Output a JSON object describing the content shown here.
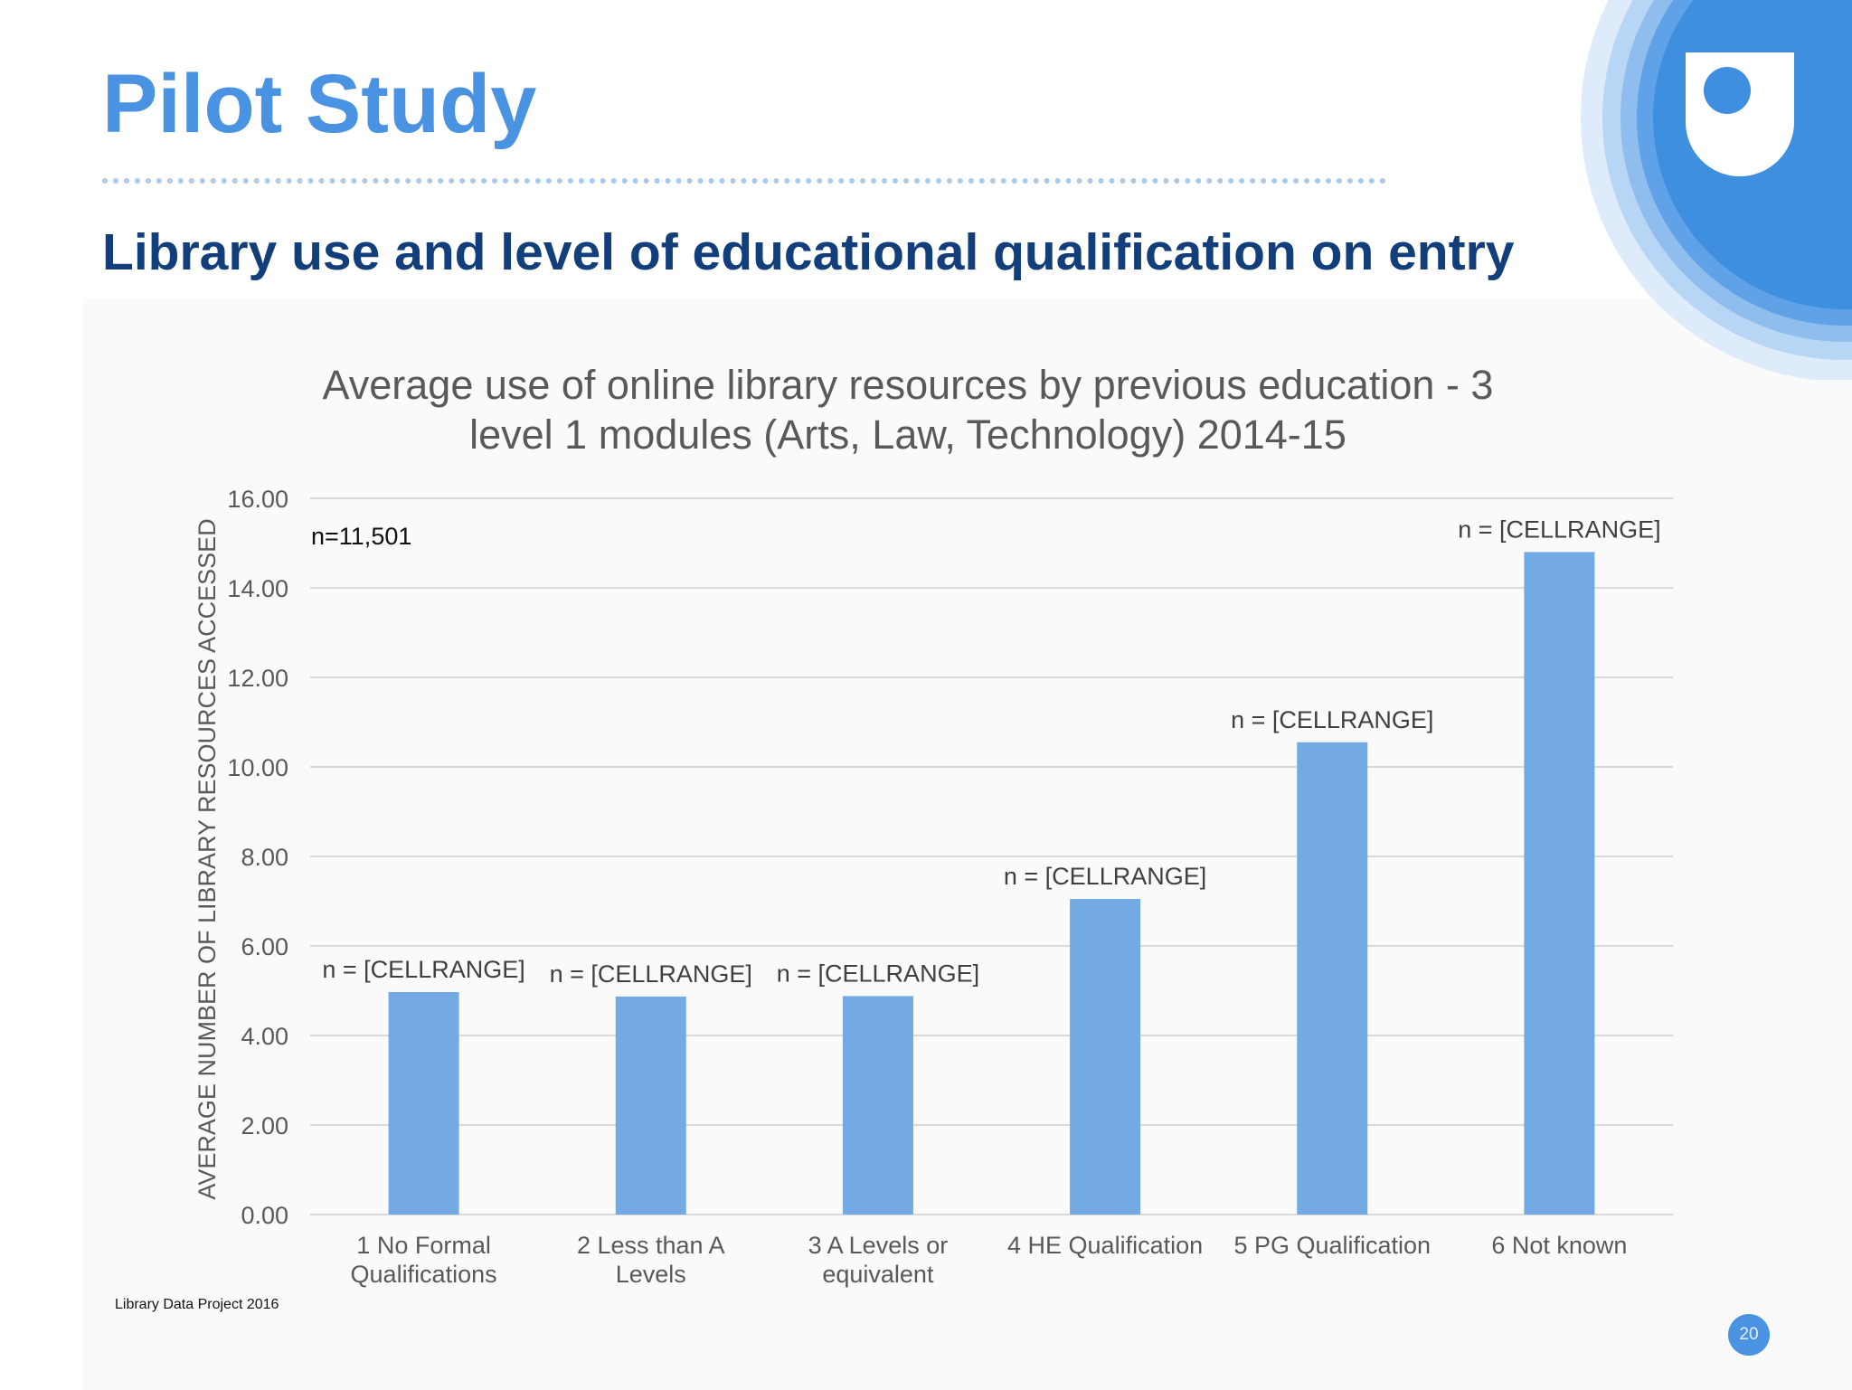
{
  "slide": {
    "title": "Pilot Study",
    "subtitle": "Library use and level of educational qualification on entry",
    "footer": "Library Data Project 2016",
    "page_number": "20"
  },
  "colors": {
    "title": "#4a92e2",
    "subtitle": "#123f7c",
    "bar": "#74aae4",
    "gridline": "#d9d9d9",
    "axis_text": "#595959"
  },
  "chart_data": {
    "type": "bar",
    "title_lines": [
      "Average use of online library resources by previous education - 3",
      "level 1 modules (Arts, Law, Technology)  2014-15"
    ],
    "ylabel": "AVERAGE NUMBER OF LIBRARY RESOURCES ACCESSED",
    "xlabel": "",
    "annotation": "n=11,501",
    "ylim": [
      0,
      16
    ],
    "yticks": [
      "0.00",
      "2.00",
      "4.00",
      "6.00",
      "8.00",
      "10.00",
      "12.00",
      "14.00",
      "16.00"
    ],
    "grid": true,
    "categories": [
      [
        "1 No Formal",
        "Qualifications"
      ],
      [
        "2 Less than A",
        "Levels"
      ],
      [
        "3 A Levels or",
        "equivalent"
      ],
      [
        "4 HE Qualification"
      ],
      [
        "5 PG Qualification"
      ],
      [
        "6 Not known"
      ]
    ],
    "values": [
      4.97,
      4.87,
      4.88,
      7.05,
      10.55,
      14.8
    ],
    "data_labels": [
      "n = [CELLRANGE]",
      "n = [CELLRANGE]",
      "n = [CELLRANGE]",
      "n = [CELLRANGE]",
      "n = [CELLRANGE]",
      "n = [CELLRANGE]"
    ]
  }
}
